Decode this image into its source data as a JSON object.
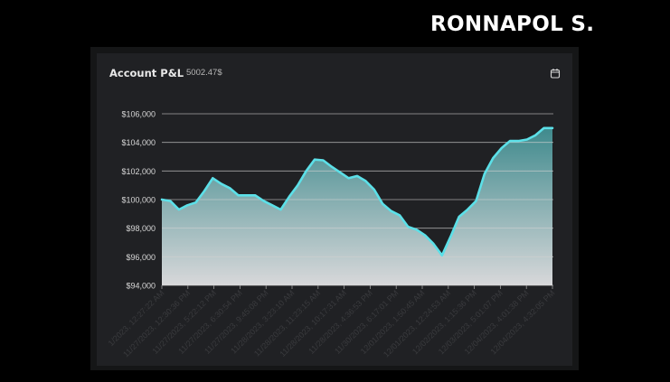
{
  "header": {
    "brand": "RONNAPOL S."
  },
  "card": {
    "title": "Account P&L",
    "value": "5002.47$"
  },
  "icons": {
    "calendar": "calendar-icon"
  },
  "colors": {
    "line": "#5ce0e8",
    "fill_top": "#3f8a8d",
    "fill_bottom": "#d8d8da",
    "card_bg": "#202124",
    "grid": "#d0d0d0"
  },
  "chart_data": {
    "type": "area",
    "title": "Account P&L",
    "xlabel": "",
    "ylabel": "",
    "ylim": [
      94000,
      106000
    ],
    "y_ticks": [
      94000,
      96000,
      98000,
      100000,
      102000,
      104000,
      106000
    ],
    "y_tick_labels": [
      "$94,000",
      "$96,000",
      "$98,000",
      "$100,000",
      "$102,000",
      "$104,000",
      "$106,000"
    ],
    "grid": true,
    "x_tick_labels": [
      "1/2023, 12:27:22 AM",
      "11/27/2023, 12:30:36 PM",
      "11/27/2023, 5:22:12 PM",
      "11/27/2023, 6:30:54 PM",
      "11/27/2023, 9:45:08 PM",
      "11/28/2023, 3:23:10 AM",
      "11/28/2023, 11:23:15 AM",
      "11/28/2023, 10:17:31 AM",
      "11/28/2023, 4:36:53 PM",
      "11/30/2023, 6:17:01 PM",
      "12/01/2023, 1:50:45 AM",
      "12/01/2023, 12:24:53 AM",
      "12/02/2023, 1:15:36 PM",
      "12/03/2023, 5:01:07 PM",
      "12/04/2023, 4:01:38 PM",
      "12/04/2023, 4:32:05 PM"
    ],
    "series": [
      {
        "values": [
          100000,
          99900,
          99300,
          99600,
          99800,
          100600,
          101500,
          101100,
          100800,
          100300,
          100300,
          100300,
          99900,
          99600,
          99300,
          100200,
          101000,
          102000,
          102800,
          102750,
          102300,
          101900,
          101500,
          101650,
          101300,
          100700,
          99700,
          99200,
          98900,
          98100,
          97900,
          97500,
          96900,
          96100,
          97400,
          98800,
          99300,
          99900,
          101800,
          102900,
          103600,
          104100,
          104100,
          104200,
          104500,
          105000,
          105000
        ]
      }
    ]
  }
}
